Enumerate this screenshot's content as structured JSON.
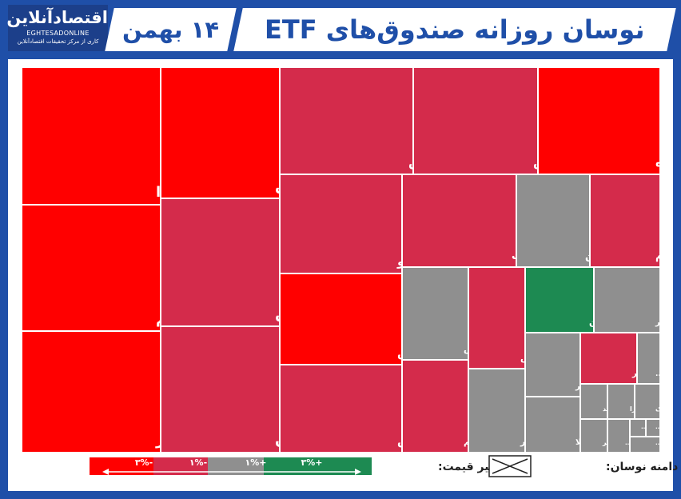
{
  "header": {
    "logo_main": "اقتصادآنلاین",
    "logo_en": "EGHTESADONLINE",
    "logo_sub": "کاری از مرکز تحقیقات اقتصادآنلاین",
    "date": "۱۴ بهمن",
    "title": "نوسان روزانه صندوق‌های ETF"
  },
  "legend": {
    "price_change_label": "تغییر قیمت:",
    "range_label": "دامنه نوسان:",
    "scale": [
      "-۳%",
      "-۱%",
      "+۱%",
      "+۳%"
    ]
  },
  "colors": {
    "strong_red": "#ff0000",
    "red": "#d42b4b",
    "neutral": "#8f8f8f",
    "green": "#1d8a52",
    "frame": "#1f4fa8"
  },
  "chart_data": {
    "type": "treemap",
    "items": [
      {
        "label": "آوا",
        "color": "#ff0000"
      },
      {
        "label": "دارا یکم",
        "color": "#ff0000"
      },
      {
        "label": "مدیر",
        "color": "#ff0000"
      },
      {
        "label": "پالایش",
        "color": "#ff0000"
      },
      {
        "label": "ارزش",
        "color": "#d42b4b"
      },
      {
        "label": "کاردان",
        "color": "#d42b4b"
      },
      {
        "label": "آساس",
        "color": "#d42b4b"
      },
      {
        "label": "کاریس",
        "color": "#d42b4b"
      },
      {
        "label": "فیروزه",
        "color": "#ff0000"
      },
      {
        "label": "سرو",
        "color": "#d42b4b"
      },
      {
        "label": "افق ملت",
        "color": "#d42b4b"
      },
      {
        "label": "صنوین",
        "color": "#8f8f8f"
      },
      {
        "label": "آسام",
        "color": "#d42b4b"
      },
      {
        "label": "آتیمس",
        "color": "#ff0000"
      },
      {
        "label": "آگاس",
        "color": "#d42b4b"
      },
      {
        "label": "الماس",
        "color": "#8f8f8f"
      },
      {
        "label": "ثروتم",
        "color": "#d42b4b"
      },
      {
        "label": "اطلس",
        "color": "#d42b4b"
      },
      {
        "label": "زر",
        "color": "#8f8f8f"
      },
      {
        "label": "نگین",
        "color": "#1d8a52"
      },
      {
        "label": "گوهر",
        "color": "#8f8f8f"
      },
      {
        "label": "عیار",
        "color": "#8f8f8f"
      },
      {
        "label": "طلا",
        "color": "#8f8f8f"
      },
      {
        "label": "بذر",
        "color": "#d42b4b"
      },
      {
        "label": "فیر...",
        "color": "#8f8f8f"
      },
      {
        "label": "سخند",
        "color": "#8f8f8f"
      },
      {
        "label": "دارا",
        "color": "#8f8f8f"
      },
      {
        "label": "داریک",
        "color": "#8f8f8f"
      },
      {
        "label": "سپر",
        "color": "#8f8f8f"
      },
      {
        "label": "صاپ...",
        "color": "#8f8f8f"
      },
      {
        "label": "ا...",
        "color": "#8f8f8f"
      },
      {
        "label": "ا...",
        "color": "#8f8f8f"
      },
      {
        "label": "...",
        "color": "#8f8f8f"
      }
    ]
  }
}
